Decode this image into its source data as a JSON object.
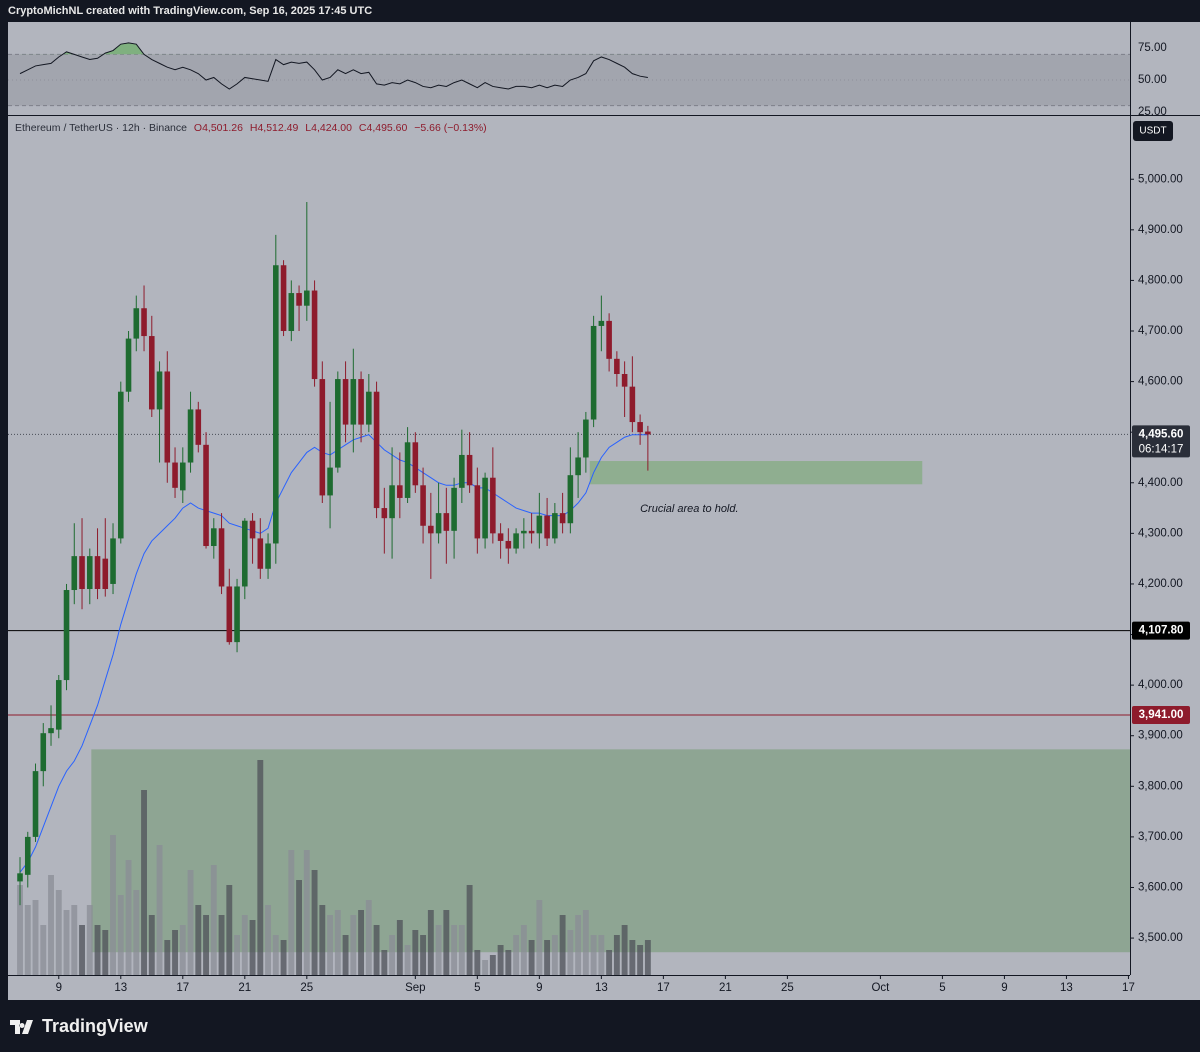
{
  "header": {
    "credit": "CryptoMichNL created with TradingView.com, Sep 16, 2025 17:45 UTC",
    "legend": {
      "symbol": "Ethereum / TetherUS · 12h · Binance",
      "open": "O4,501.26",
      "high": "H4,512.49",
      "low": "L4,424.00",
      "close": "C4,495.60",
      "change": "−5.66 (−0.13%)"
    }
  },
  "chart_data": [
    {
      "type": "line",
      "color": "#131722",
      "values": [
        55,
        58,
        61,
        62,
        63,
        68,
        72,
        70,
        68,
        66,
        67,
        71,
        73,
        78,
        79,
        78,
        70,
        66,
        63,
        60,
        58,
        60,
        58,
        55,
        50,
        52,
        47,
        43,
        47,
        52,
        51,
        50,
        49,
        66,
        62,
        64,
        63,
        64,
        58,
        50,
        52,
        58,
        55,
        58,
        55,
        56,
        47,
        46,
        48,
        47,
        50,
        48,
        45,
        44,
        46,
        45,
        48,
        50,
        47,
        44,
        48,
        45,
        44,
        43,
        45,
        45,
        44,
        46,
        44,
        46,
        45,
        50,
        52,
        55,
        65,
        68,
        66,
        63,
        60,
        55,
        53,
        52
      ],
      "xlim": [
        -1.55,
        143.2
      ],
      "ylim": [
        22.7,
        95.3
      ],
      "yticks": [
        {
          "value": 75,
          "label": "75.00"
        },
        {
          "value": 50,
          "label": "50.00"
        },
        {
          "value": 25,
          "label": "25.00"
        }
      ],
      "band": [
        30,
        70
      ],
      "band_color": "#a2a5ae",
      "overbought_color": "#7fb07f"
    },
    {
      "type": "candlestick",
      "currency": "USDT",
      "up_color": "#1e6b30",
      "down_color": "#8e1b2c",
      "open": [
        3612,
        3625,
        3700,
        3830,
        3905,
        3912,
        4010,
        4188,
        4255,
        4190,
        4255,
        4250,
        4200,
        4290,
        4580,
        4685,
        4745,
        4690,
        4545,
        4620,
        4440,
        4385,
        4440,
        4545,
        4475,
        4275,
        4310,
        4195,
        4085,
        4195,
        4325,
        4290,
        4230,
        4280,
        4830,
        4700,
        4775,
        4750,
        4780,
        4605,
        4375,
        4430,
        4605,
        4515,
        4605,
        4515,
        4580,
        4350,
        4330,
        4395,
        4370,
        4480,
        4395,
        4315,
        4300,
        4340,
        4305,
        4390,
        4455,
        4395,
        4290,
        4410,
        4300,
        4285,
        4270,
        4300,
        4305,
        4300,
        4335,
        4290,
        4340,
        4320,
        4415,
        4450,
        4525,
        4710,
        4720,
        4645,
        4615,
        4590,
        4520,
        4501.26
      ],
      "high": [
        3660,
        3710,
        3845,
        3925,
        3960,
        4020,
        4200,
        4320,
        4330,
        4270,
        4310,
        4330,
        4320,
        4600,
        4700,
        4770,
        4790,
        4730,
        4640,
        4660,
        4470,
        4470,
        4580,
        4560,
        4500,
        4330,
        4340,
        4230,
        4210,
        4330,
        4340,
        4330,
        4300,
        4890,
        4840,
        4800,
        4790,
        4955,
        4800,
        4640,
        4560,
        4620,
        4640,
        4665,
        4620,
        4615,
        4600,
        4390,
        4470,
        4460,
        4510,
        4500,
        4430,
        4380,
        4400,
        4390,
        4410,
        4505,
        4500,
        4430,
        4420,
        4470,
        4320,
        4310,
        4310,
        4330,
        4340,
        4380,
        4370,
        4360,
        4380,
        4470,
        4500,
        4540,
        4730,
        4770,
        4735,
        4660,
        4640,
        4650,
        4535,
        4512.49
      ],
      "low": [
        3565,
        3600,
        3690,
        3800,
        3880,
        3895,
        3990,
        4160,
        4150,
        4160,
        4170,
        4175,
        4180,
        4280,
        4560,
        4660,
        4660,
        4530,
        4440,
        4400,
        4370,
        4360,
        4420,
        4460,
        4270,
        4250,
        4180,
        4080,
        4065,
        4170,
        4240,
        4210,
        4210,
        4240,
        4690,
        4680,
        4700,
        4720,
        4590,
        4360,
        4310,
        4420,
        4480,
        4460,
        4480,
        4500,
        4330,
        4260,
        4250,
        4330,
        4360,
        4380,
        4280,
        4210,
        4280,
        4240,
        4250,
        4360,
        4380,
        4260,
        4270,
        4280,
        4250,
        4240,
        4260,
        4270,
        4280,
        4270,
        4275,
        4280,
        4300,
        4300,
        4370,
        4420,
        4510,
        4660,
        4620,
        4590,
        4530,
        4500,
        4475,
        4424
      ],
      "close": [
        3628,
        3700,
        3830,
        3905,
        3915,
        4010,
        4188,
        4255,
        4190,
        4255,
        4190,
        4190,
        4290,
        4580,
        4685,
        4745,
        4690,
        4545,
        4620,
        4440,
        4390,
        4440,
        4545,
        4475,
        4275,
        4310,
        4195,
        4085,
        4195,
        4325,
        4290,
        4230,
        4280,
        4830,
        4700,
        4775,
        4750,
        4780,
        4605,
        4375,
        4430,
        4605,
        4515,
        4605,
        4515,
        4580,
        4350,
        4330,
        4395,
        4370,
        4480,
        4395,
        4315,
        4300,
        4340,
        4305,
        4390,
        4455,
        4395,
        4290,
        4410,
        4300,
        4285,
        4270,
        4300,
        4305,
        4300,
        4335,
        4290,
        4340,
        4320,
        4415,
        4450,
        4525,
        4710,
        4720,
        4645,
        4615,
        4590,
        4520,
        4500,
        4495.6
      ],
      "ma": {
        "color": "#2962ff",
        "values": [
          3630,
          3650,
          3680,
          3720,
          3760,
          3800,
          3830,
          3850,
          3880,
          3920,
          3960,
          4010,
          4060,
          4120,
          4170,
          4220,
          4260,
          4285,
          4300,
          4315,
          4330,
          4350,
          4360,
          4350,
          4345,
          4340,
          4335,
          4320,
          4315,
          4310,
          4305,
          4300,
          4310,
          4360,
          4390,
          4420,
          4440,
          4460,
          4470,
          4460,
          4455,
          4465,
          4475,
          4485,
          4490,
          4495,
          4480,
          4465,
          4455,
          4445,
          4440,
          4430,
          4420,
          4410,
          4400,
          4395,
          4395,
          4400,
          4400,
          4390,
          4390,
          4380,
          4370,
          4360,
          4350,
          4345,
          4340,
          4340,
          4335,
          4335,
          4335,
          4345,
          4360,
          4380,
          4420,
          4450,
          4470,
          4480,
          4490,
          4495,
          4495,
          4495
        ]
      },
      "volume": {
        "up_color": "#8a8d95",
        "down_color": "#4e5158",
        "values": [
          90,
          70,
          75,
          50,
          100,
          85,
          65,
          70,
          50,
          70,
          50,
          45,
          140,
          80,
          115,
          85,
          185,
          60,
          130,
          35,
          45,
          50,
          105,
          70,
          60,
          110,
          60,
          90,
          40,
          60,
          55,
          215,
          70,
          40,
          35,
          125,
          95,
          125,
          105,
          70,
          60,
          65,
          40,
          60,
          65,
          75,
          50,
          25,
          40,
          55,
          30,
          45,
          40,
          65,
          50,
          65,
          50,
          50,
          90,
          25,
          15,
          20,
          30,
          25,
          40,
          50,
          35,
          75,
          35,
          40,
          60,
          45,
          60,
          65,
          40,
          40,
          25,
          40,
          50,
          35,
          30,
          35
        ]
      },
      "xlim": [
        -1.55,
        143.2
      ],
      "xticks": [
        {
          "value": 5,
          "label": "9"
        },
        {
          "value": 13,
          "label": "13"
        },
        {
          "value": 21,
          "label": "17"
        },
        {
          "value": 29,
          "label": "21"
        },
        {
          "value": 37,
          "label": "25"
        },
        {
          "value": 51,
          "label": "Sep"
        },
        {
          "value": 59,
          "label": "5"
        },
        {
          "value": 67,
          "label": "9"
        },
        {
          "value": 75,
          "label": "13"
        },
        {
          "value": 83,
          "label": "17"
        },
        {
          "value": 91,
          "label": "21"
        },
        {
          "value": 99,
          "label": "25"
        },
        {
          "value": 111,
          "label": "Oct"
        },
        {
          "value": 119,
          "label": "5"
        },
        {
          "value": 127,
          "label": "9"
        },
        {
          "value": 135,
          "label": "13"
        },
        {
          "value": 143,
          "label": "17"
        }
      ],
      "ylim": [
        3427,
        5125
      ],
      "yticks": [
        {
          "value": 3500,
          "label": "3,500.00"
        },
        {
          "value": 3600,
          "label": "3,600.00"
        },
        {
          "value": 3700,
          "label": "3,700.00"
        },
        {
          "value": 3800,
          "label": "3,800.00"
        },
        {
          "value": 3900,
          "label": "3,900.00"
        },
        {
          "value": 4000,
          "label": "4,000.00"
        },
        {
          "value": 4100,
          "label": "4,100.00"
        },
        {
          "value": 4200,
          "label": "4,200.00"
        },
        {
          "value": 4300,
          "label": "4,300.00"
        },
        {
          "value": 4400,
          "label": "4,400.00"
        },
        {
          "value": 4500,
          "label": "4,500.00"
        },
        {
          "value": 4600,
          "label": "4,600.00"
        },
        {
          "value": 4700,
          "label": "4,700.00"
        },
        {
          "value": 4800,
          "label": "4,800.00"
        },
        {
          "value": 4900,
          "label": "4,900.00"
        },
        {
          "value": 5000,
          "label": "5,000.00"
        }
      ],
      "lines": [
        {
          "value": 4107.8,
          "label": "4,107.80",
          "color": "#000000"
        },
        {
          "value": 3941,
          "label": "3,941.00",
          "color": "#8e1b2c"
        }
      ],
      "last": {
        "value": 4495.6,
        "label": "4,495.60",
        "countdown": "06:14:17"
      },
      "zones": [
        {
          "x": [
            73.5,
            116.4
          ],
          "y": [
            4397,
            4443
          ],
          "color": "#8fae90"
        },
        {
          "x": [
            9.2,
            143.2
          ],
          "y": [
            3472,
            3873
          ],
          "color": "#8ea593"
        }
      ],
      "annotation": {
        "text": "Crucial area to hold.",
        "x": 80,
        "y": 4348
      }
    }
  ],
  "footer": {
    "brand": "TradingView"
  }
}
